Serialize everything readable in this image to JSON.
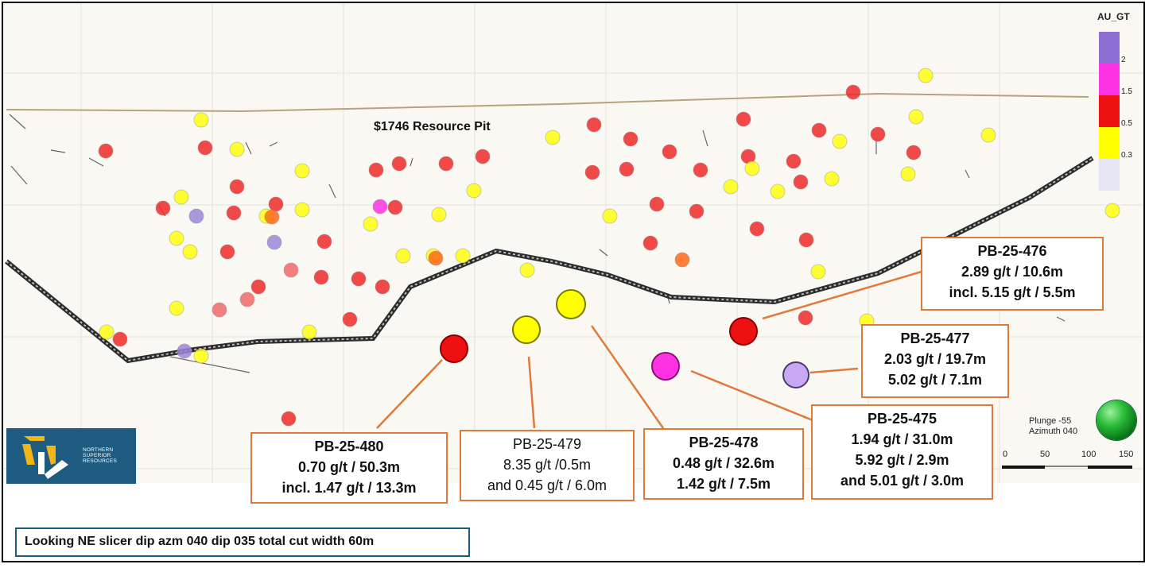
{
  "pit_label": "$1746 Resource Pit",
  "legend": {
    "title": "AU_GT",
    "ticks": [
      "2",
      "1.5",
      "0.5",
      "0.3"
    ],
    "colors": {
      "gt2": "#8e6fd4",
      "1.5-2": "#ff33e6",
      "0.5-1.5": "#ee1111",
      "0.3-0.5": "#ffff00",
      "lt0.3": "#e6e6f5"
    }
  },
  "callouts": [
    {
      "id": "PB-25-476",
      "lines": [
        "PB-25-476",
        "2.89 g/t / 10.6m",
        "incl. 5.15 g/t / 5.5m"
      ]
    },
    {
      "id": "PB-25-477",
      "lines": [
        "PB-25-477",
        "2.03 g/t / 19.7m",
        "5.02 g/t / 7.1m"
      ]
    },
    {
      "id": "PB-25-475",
      "lines": [
        "PB-25-475",
        "1.94 g/t / 31.0m",
        "5.92 g/t / 2.9m",
        "and 5.01 g/t / 3.0m"
      ]
    },
    {
      "id": "PB-25-478",
      "lines": [
        "PB-25-478",
        "0.48 g/t / 32.6m",
        "1.42 g/t / 7.5m"
      ]
    },
    {
      "id": "PB-25-479",
      "lines": [
        "PB-25-479",
        "8.35 g/t /0.5m",
        "and 0.45 g/t / 6.0m"
      ]
    },
    {
      "id": "PB-25-480",
      "lines": [
        "PB-25-480",
        "0.70 g/t / 50.3m",
        "incl. 1.47 g/t / 13.3m"
      ]
    }
  ],
  "orientation": {
    "plunge": "Plunge -55",
    "azimuth": "Azimuth 040",
    "icon": "orientation-globe-icon"
  },
  "scale_bar": {
    "labels": [
      "0",
      "50",
      "100",
      "150"
    ]
  },
  "logo": {
    "line1": "NORTHERN",
    "line2": "SUPERIOR",
    "line3": "RESOURCES"
  },
  "footer": "Looking NE slicer dip azm 040 dip 035 total cut width 60m"
}
